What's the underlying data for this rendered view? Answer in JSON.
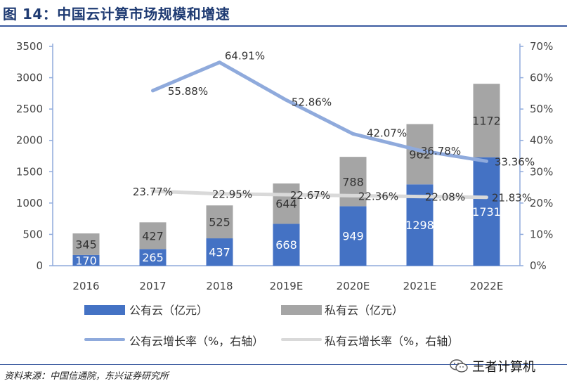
{
  "title": "图 14：中国云计算市场规模和增速",
  "source": "资料来源：中国信通院，东兴证券研究所",
  "watermark": "王者计算机",
  "colors": {
    "public_bar": "#4472c4",
    "private_bar": "#a5a5a5",
    "public_line": "#8faadc",
    "private_line": "#d9d9d9",
    "axis": "#8faadc",
    "title": "#1f3b73"
  },
  "chart_data": {
    "type": "bar",
    "stacked": true,
    "categories": [
      "2016",
      "2017",
      "2018",
      "2019E",
      "2020E",
      "2021E",
      "2022E"
    ],
    "y_left": {
      "lim": [
        0,
        3500
      ],
      "ticks": [
        "0",
        "500",
        "1000",
        "1500",
        "2000",
        "2500",
        "3000",
        "3500"
      ]
    },
    "y_right": {
      "lim": [
        0,
        70
      ],
      "ticks": [
        "0%",
        "10%",
        "20%",
        "30%",
        "40%",
        "50%",
        "60%",
        "70%"
      ]
    },
    "series": [
      {
        "name": "公有云（亿元）",
        "type": "bar",
        "axis": "left",
        "values": [
          170,
          265,
          437,
          668,
          949,
          1298,
          1731
        ],
        "labels": [
          "170",
          "265",
          "437",
          "668",
          "949",
          "1298",
          "1731"
        ]
      },
      {
        "name": "私有云（亿元）",
        "type": "bar",
        "axis": "left",
        "values": [
          345,
          427,
          525,
          644,
          788,
          962,
          1172
        ],
        "labels": [
          "345",
          "427",
          "525",
          "644",
          "788",
          "962",
          "1172"
        ]
      },
      {
        "name": "公有云增长率（%，右轴）",
        "type": "line",
        "axis": "right",
        "values": [
          null,
          55.88,
          64.91,
          52.86,
          42.07,
          36.78,
          33.36
        ],
        "labels": [
          "",
          "55.88%",
          "64.91%",
          "52.86%",
          "42.07%",
          "36.78%",
          "33.36%"
        ]
      },
      {
        "name": "私有云增长率（%，右轴）",
        "type": "line",
        "axis": "right",
        "values": [
          null,
          23.77,
          22.95,
          22.67,
          22.36,
          22.08,
          21.83
        ],
        "labels": [
          "",
          "23.77%",
          "22.95%",
          "22.67%",
          "22.36%",
          "22.08%",
          "21.83%"
        ]
      }
    ],
    "legend": "bottom",
    "grid": false
  }
}
